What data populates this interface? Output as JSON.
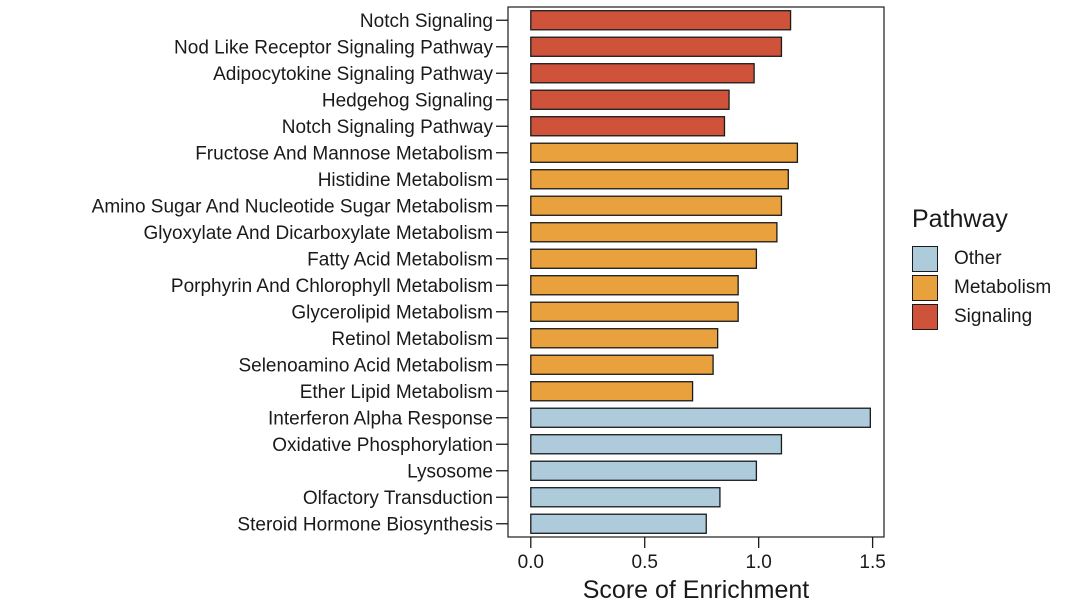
{
  "chart_data": {
    "type": "bar",
    "orientation": "horizontal",
    "title": "",
    "xlabel": "Score of Enrichment",
    "ylabel": "",
    "xlim": [
      -0.1,
      1.55
    ],
    "xticks": [
      0.0,
      0.5,
      1.0,
      1.5
    ],
    "xtick_labels": [
      "0.0",
      "0.5",
      "1.0",
      "1.5"
    ],
    "grid": false,
    "legend": {
      "title": "Pathway",
      "placement": "right",
      "entries": [
        {
          "name": "Other",
          "color": "#aecbdc"
        },
        {
          "name": "Metabolism",
          "color": "#e8a13d"
        },
        {
          "name": "Signaling",
          "color": "#cf523a"
        }
      ]
    },
    "bars": [
      {
        "label": "Notch Signaling",
        "value": 1.14,
        "group": "Signaling"
      },
      {
        "label": "Nod Like Receptor Signaling Pathway",
        "value": 1.1,
        "group": "Signaling"
      },
      {
        "label": "Adipocytokine Signaling Pathway",
        "value": 0.98,
        "group": "Signaling"
      },
      {
        "label": "Hedgehog Signaling",
        "value": 0.87,
        "group": "Signaling"
      },
      {
        "label": "Notch Signaling Pathway",
        "value": 0.85,
        "group": "Signaling"
      },
      {
        "label": "Fructose And Mannose Metabolism",
        "value": 1.17,
        "group": "Metabolism"
      },
      {
        "label": "Histidine Metabolism",
        "value": 1.13,
        "group": "Metabolism"
      },
      {
        "label": "Amino Sugar And Nucleotide Sugar Metabolism",
        "value": 1.1,
        "group": "Metabolism"
      },
      {
        "label": "Glyoxylate And Dicarboxylate Metabolism",
        "value": 1.08,
        "group": "Metabolism"
      },
      {
        "label": "Fatty Acid Metabolism",
        "value": 0.99,
        "group": "Metabolism"
      },
      {
        "label": "Porphyrin And Chlorophyll Metabolism",
        "value": 0.91,
        "group": "Metabolism"
      },
      {
        "label": "Glycerolipid Metabolism",
        "value": 0.91,
        "group": "Metabolism"
      },
      {
        "label": "Retinol Metabolism",
        "value": 0.82,
        "group": "Metabolism"
      },
      {
        "label": "Selenoamino Acid Metabolism",
        "value": 0.8,
        "group": "Metabolism"
      },
      {
        "label": "Ether Lipid Metabolism",
        "value": 0.71,
        "group": "Metabolism"
      },
      {
        "label": "Interferon Alpha Response",
        "value": 1.49,
        "group": "Other"
      },
      {
        "label": "Oxidative Phosphorylation",
        "value": 1.1,
        "group": "Other"
      },
      {
        "label": "Lysosome",
        "value": 0.99,
        "group": "Other"
      },
      {
        "label": "Olfactory Transduction",
        "value": 0.83,
        "group": "Other"
      },
      {
        "label": "Steroid Hormone Biosynthesis",
        "value": 0.77,
        "group": "Other"
      }
    ]
  }
}
